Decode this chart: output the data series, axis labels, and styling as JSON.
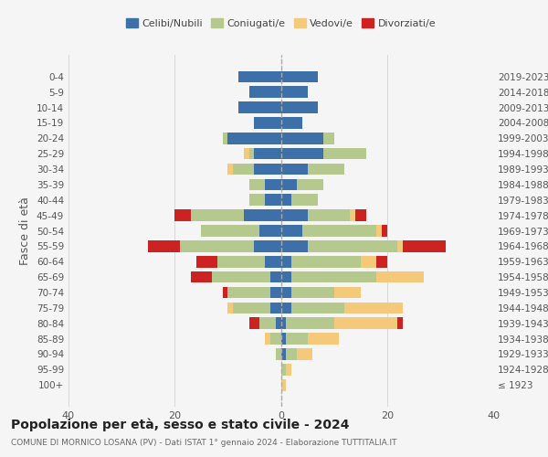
{
  "age_groups": [
    "100+",
    "95-99",
    "90-94",
    "85-89",
    "80-84",
    "75-79",
    "70-74",
    "65-69",
    "60-64",
    "55-59",
    "50-54",
    "45-49",
    "40-44",
    "35-39",
    "30-34",
    "25-29",
    "20-24",
    "15-19",
    "10-14",
    "5-9",
    "0-4"
  ],
  "birth_years": [
    "≤ 1923",
    "1924-1928",
    "1929-1933",
    "1934-1938",
    "1939-1943",
    "1944-1948",
    "1949-1953",
    "1954-1958",
    "1959-1963",
    "1964-1968",
    "1969-1973",
    "1974-1978",
    "1979-1983",
    "1984-1988",
    "1989-1993",
    "1994-1998",
    "1999-2003",
    "2004-2008",
    "2009-2013",
    "2014-2018",
    "2019-2023"
  ],
  "colors": {
    "celibi": "#3d6fa8",
    "coniugati": "#b5c98e",
    "vedovi": "#f5c97a",
    "divorziati": "#cc2222"
  },
  "males": {
    "celibi": [
      0,
      0,
      0,
      0,
      1,
      2,
      2,
      2,
      3,
      5,
      4,
      7,
      3,
      3,
      5,
      5,
      10,
      5,
      8,
      6,
      8
    ],
    "coniugati": [
      0,
      0,
      1,
      2,
      3,
      7,
      8,
      11,
      9,
      14,
      11,
      10,
      3,
      3,
      4,
      1,
      1,
      0,
      0,
      0,
      0
    ],
    "vedovi": [
      0,
      0,
      0,
      1,
      0,
      1,
      0,
      0,
      0,
      0,
      0,
      0,
      0,
      0,
      1,
      1,
      0,
      0,
      0,
      0,
      0
    ],
    "divorziati": [
      0,
      0,
      0,
      0,
      2,
      0,
      1,
      4,
      4,
      6,
      0,
      3,
      0,
      0,
      0,
      0,
      0,
      0,
      0,
      0,
      0
    ]
  },
  "females": {
    "celibi": [
      0,
      0,
      1,
      1,
      1,
      2,
      2,
      2,
      2,
      5,
      4,
      5,
      2,
      3,
      5,
      8,
      8,
      4,
      7,
      5,
      7
    ],
    "coniugati": [
      0,
      1,
      2,
      4,
      9,
      10,
      8,
      16,
      13,
      17,
      14,
      8,
      5,
      5,
      7,
      8,
      2,
      0,
      0,
      0,
      0
    ],
    "vedovi": [
      1,
      1,
      3,
      6,
      12,
      11,
      5,
      9,
      3,
      1,
      1,
      1,
      0,
      0,
      0,
      0,
      0,
      0,
      0,
      0,
      0
    ],
    "divorziati": [
      0,
      0,
      0,
      0,
      1,
      0,
      0,
      0,
      2,
      8,
      1,
      2,
      0,
      0,
      0,
      0,
      0,
      0,
      0,
      0,
      0
    ]
  },
  "xlim": 40,
  "title": "Popolazione per età, sesso e stato civile - 2024",
  "subtitle": "COMUNE DI MORNICO LOSANA (PV) - Dati ISTAT 1° gennaio 2024 - Elaborazione TUTTITALIA.IT",
  "ylabel": "Fasce di età",
  "legend_labels": [
    "Celibi/Nubili",
    "Coniugati/e",
    "Vedovi/e",
    "Divorziati/e"
  ],
  "background_color": "#f5f5f5"
}
